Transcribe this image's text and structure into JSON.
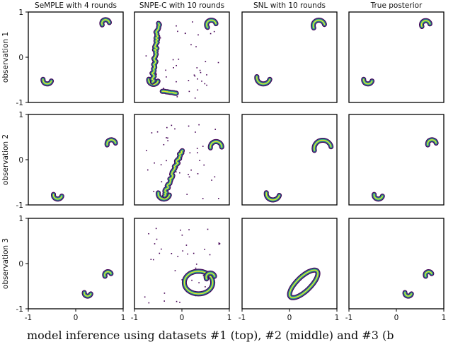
{
  "caption": "model inference using datasets #1 (top), #2 (middle) and #3 (b",
  "chart_data": {
    "type": "heatmap",
    "columns": [
      "SeMPLE with 4 rounds",
      "SNPE-C with 10 rounds",
      "SNL with 10 rounds",
      "True posterior"
    ],
    "rows": [
      "observation 1",
      "observation 2",
      "observation 3"
    ],
    "xlim": [
      -1,
      1
    ],
    "ylim": [
      -1,
      1
    ],
    "x_ticks": [
      "-1",
      "0",
      "1"
    ],
    "y_ticks": [
      "-1",
      "0",
      "1"
    ],
    "grid": false,
    "colormap": [
      "#440154",
      "#3b528b",
      "#21918c",
      "#5ec962",
      "#fde725"
    ],
    "panels": [
      [
        {
          "clusters": [
            {
              "shape": "arc",
              "cx": 0.63,
              "cy": 0.75,
              "r": 0.08,
              "a0": 0.2,
              "a1": 3.6
            },
            {
              "shape": "arc",
              "cx": -0.6,
              "cy": -0.5,
              "r": 0.09,
              "a0": 3.0,
              "a1": 6.0
            }
          ]
        },
        {
          "clusters": [
            {
              "shape": "arc",
              "cx": 0.62,
              "cy": 0.72,
              "r": 0.1,
              "a0": 0.2,
              "a1": 3.8
            },
            {
              "shape": "arc",
              "cx": -0.6,
              "cy": -0.5,
              "r": 0.1,
              "a0": 3.0,
              "a1": 6.0
            },
            {
              "shape": "line",
              "x0": -0.62,
              "y0": -0.55,
              "x1": -0.5,
              "y1": 0.75
            },
            {
              "shape": "line",
              "x0": -0.4,
              "y0": -0.75,
              "x1": -0.1,
              "y1": -0.8
            }
          ],
          "noise": true
        },
        {
          "clusters": [
            {
              "shape": "arc",
              "cx": 0.62,
              "cy": 0.7,
              "r": 0.12,
              "a0": 0.2,
              "a1": 3.6
            },
            {
              "shape": "arc",
              "cx": -0.55,
              "cy": -0.45,
              "r": 0.14,
              "a0": 3.0,
              "a1": 6.0
            }
          ]
        },
        {
          "clusters": [
            {
              "shape": "arc",
              "cx": 0.62,
              "cy": 0.72,
              "r": 0.09,
              "a0": 0.2,
              "a1": 3.6
            },
            {
              "shape": "arc",
              "cx": -0.6,
              "cy": -0.5,
              "r": 0.09,
              "a0": 3.0,
              "a1": 6.0
            }
          ]
        }
      ],
      [
        {
          "clusters": [
            {
              "shape": "arc",
              "cx": 0.75,
              "cy": 0.35,
              "r": 0.09,
              "a0": 0.2,
              "a1": 3.4
            },
            {
              "shape": "arc",
              "cx": -0.38,
              "cy": -0.78,
              "r": 0.09,
              "a0": 3.0,
              "a1": 6.0
            }
          ]
        },
        {
          "clusters": [
            {
              "shape": "arc",
              "cx": 0.72,
              "cy": 0.28,
              "r": 0.12,
              "a0": 0.0,
              "a1": 3.3
            },
            {
              "shape": "arc",
              "cx": -0.38,
              "cy": -0.75,
              "r": 0.12,
              "a0": 3.0,
              "a1": 6.0
            },
            {
              "shape": "line",
              "x0": -0.38,
              "y0": -0.8,
              "x1": 0.0,
              "y1": 0.2
            }
          ],
          "noise": true
        },
        {
          "clusters": [
            {
              "shape": "arc",
              "cx": 0.7,
              "cy": 0.25,
              "r": 0.18,
              "a0": 0.2,
              "a1": 3.4
            },
            {
              "shape": "arc",
              "cx": -0.35,
              "cy": -0.75,
              "r": 0.14,
              "a0": 3.0,
              "a1": 6.0
            }
          ]
        },
        {
          "clusters": [
            {
              "shape": "arc",
              "cx": 0.75,
              "cy": 0.35,
              "r": 0.09,
              "a0": 0.2,
              "a1": 3.4
            },
            {
              "shape": "arc",
              "cx": -0.38,
              "cy": -0.78,
              "r": 0.09,
              "a0": 3.0,
              "a1": 6.0
            }
          ]
        }
      ],
      [
        {
          "clusters": [
            {
              "shape": "arc",
              "cx": 0.68,
              "cy": -0.25,
              "r": 0.07,
              "a0": 0.4,
              "a1": 3.6
            },
            {
              "shape": "arc",
              "cx": 0.25,
              "cy": -0.65,
              "r": 0.07,
              "a0": 3.0,
              "a1": 6.0
            }
          ]
        },
        {
          "clusters": [
            {
              "shape": "ellipse",
              "cx": 0.35,
              "cy": -0.42,
              "rx": 0.3,
              "ry": 0.25
            },
            {
              "shape": "arc",
              "cx": 0.6,
              "cy": -0.3,
              "r": 0.09,
              "a0": 0.2,
              "a1": 3.6
            }
          ],
          "noise": true
        },
        {
          "clusters": [
            {
              "shape": "ellipse",
              "cx": 0.3,
              "cy": -0.45,
              "rx": 0.4,
              "ry": 0.15,
              "rot": 0.8
            }
          ]
        },
        {
          "clusters": [
            {
              "shape": "arc",
              "cx": 0.68,
              "cy": -0.25,
              "r": 0.07,
              "a0": 0.4,
              "a1": 3.6
            },
            {
              "shape": "arc",
              "cx": 0.25,
              "cy": -0.65,
              "r": 0.07,
              "a0": 3.0,
              "a1": 6.0
            }
          ]
        }
      ]
    ]
  }
}
